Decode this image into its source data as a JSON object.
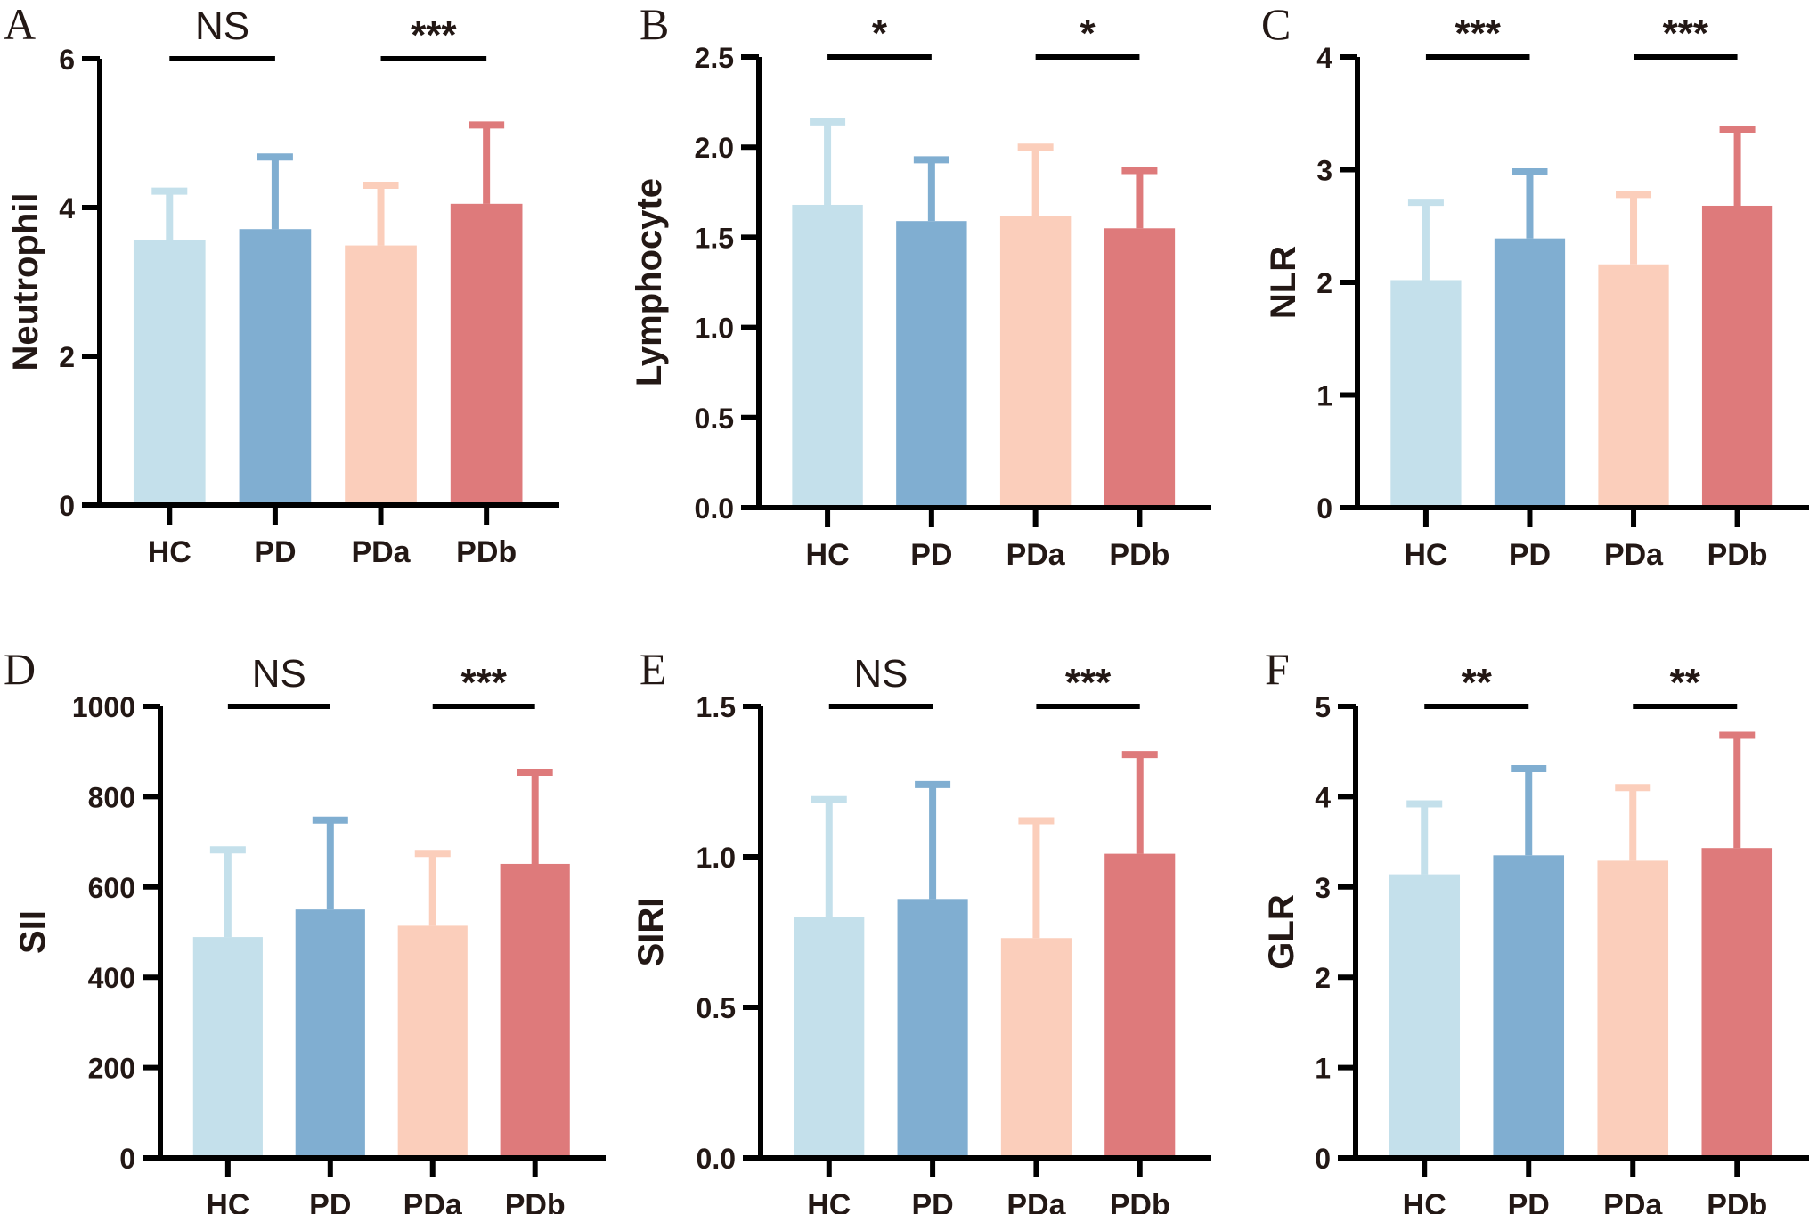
{
  "figure": {
    "groups": [
      "HC",
      "PD",
      "PDa",
      "PDb"
    ],
    "colors": {
      "HC": "#c4e0eb",
      "PD": "#80aed1",
      "PDa": "#fbcebb",
      "PDb": "#de7a7b",
      "axis": "#000000",
      "text": "#231815"
    }
  },
  "chart_data": [
    {
      "type": "bar",
      "panel": "A",
      "ylabel": "Neutrophil",
      "categories": [
        "HC",
        "PD",
        "PDa",
        "PDb"
      ],
      "values": [
        3.56,
        3.71,
        3.49,
        4.05
      ],
      "error_upper": [
        4.22,
        4.68,
        4.3,
        5.11
      ],
      "ylim": [
        0,
        6
      ],
      "yticks": [
        0,
        2,
        4,
        6
      ],
      "ytick_labels": [
        "0",
        "2",
        "4",
        "6"
      ],
      "comparisons": [
        {
          "pair": [
            "HC",
            "PD"
          ],
          "label": "NS"
        },
        {
          "pair": [
            "PDa",
            "PDb"
          ],
          "label": "***"
        }
      ]
    },
    {
      "type": "bar",
      "panel": "B",
      "ylabel": "Lymphocyte",
      "categories": [
        "HC",
        "PD",
        "PDa",
        "PDb"
      ],
      "values": [
        1.68,
        1.59,
        1.62,
        1.55
      ],
      "error_upper": [
        2.14,
        1.93,
        2.0,
        1.87
      ],
      "ylim": [
        0,
        2.5
      ],
      "yticks": [
        0,
        0.5,
        1.0,
        1.5,
        2.0,
        2.5
      ],
      "ytick_labels": [
        "0.0",
        "0.5",
        "1.0",
        "1.5",
        "2.0",
        "2.5"
      ],
      "comparisons": [
        {
          "pair": [
            "HC",
            "PD"
          ],
          "label": "*"
        },
        {
          "pair": [
            "PDa",
            "PDb"
          ],
          "label": "*"
        }
      ]
    },
    {
      "type": "bar",
      "panel": "C",
      "ylabel": "NLR",
      "categories": [
        "HC",
        "PD",
        "PDa",
        "PDb"
      ],
      "values": [
        2.02,
        2.39,
        2.16,
        2.68
      ],
      "error_upper": [
        2.71,
        2.98,
        2.78,
        3.36
      ],
      "ylim": [
        0,
        4
      ],
      "yticks": [
        0,
        1,
        2,
        3,
        4
      ],
      "ytick_labels": [
        "0",
        "1",
        "2",
        "3",
        "4"
      ],
      "comparisons": [
        {
          "pair": [
            "HC",
            "PD"
          ],
          "label": "***"
        },
        {
          "pair": [
            "PDa",
            "PDb"
          ],
          "label": "***"
        }
      ]
    },
    {
      "type": "bar",
      "panel": "D",
      "ylabel": "SII",
      "categories": [
        "HC",
        "PD",
        "PDa",
        "PDb"
      ],
      "values": [
        489,
        550,
        514,
        651
      ],
      "error_upper": [
        682,
        748,
        674,
        854
      ],
      "ylim": [
        0,
        1000
      ],
      "yticks": [
        0,
        200,
        400,
        600,
        800,
        1000
      ],
      "ytick_labels": [
        "0",
        "200",
        "400",
        "600",
        "800",
        "1000"
      ],
      "comparisons": [
        {
          "pair": [
            "HC",
            "PD"
          ],
          "label": "NS"
        },
        {
          "pair": [
            "PDa",
            "PDb"
          ],
          "label": "***"
        }
      ]
    },
    {
      "type": "bar",
      "panel": "E",
      "ylabel": "SIRI",
      "categories": [
        "HC",
        "PD",
        "PDa",
        "PDb"
      ],
      "values": [
        0.8,
        0.86,
        0.73,
        1.01
      ],
      "error_upper": [
        1.19,
        1.24,
        1.12,
        1.34
      ],
      "ylim": [
        0,
        1.5
      ],
      "yticks": [
        0,
        0.5,
        1.0,
        1.5
      ],
      "ytick_labels": [
        "0.0",
        "0.5",
        "1.0",
        "1.5"
      ],
      "comparisons": [
        {
          "pair": [
            "HC",
            "PD"
          ],
          "label": "NS"
        },
        {
          "pair": [
            "PDa",
            "PDb"
          ],
          "label": "***"
        }
      ]
    },
    {
      "type": "bar",
      "panel": "F",
      "ylabel": "GLR",
      "categories": [
        "HC",
        "PD",
        "PDa",
        "PDb"
      ],
      "values": [
        3.14,
        3.35,
        3.29,
        3.43
      ],
      "error_upper": [
        3.92,
        4.31,
        4.1,
        4.68
      ],
      "ylim": [
        0,
        5
      ],
      "yticks": [
        0,
        1,
        2,
        3,
        4,
        5
      ],
      "ytick_labels": [
        "0",
        "1",
        "2",
        "3",
        "4",
        "5"
      ],
      "comparisons": [
        {
          "pair": [
            "HC",
            "PD"
          ],
          "label": "**"
        },
        {
          "pair": [
            "PDa",
            "PDb"
          ],
          "label": "**"
        }
      ]
    }
  ]
}
